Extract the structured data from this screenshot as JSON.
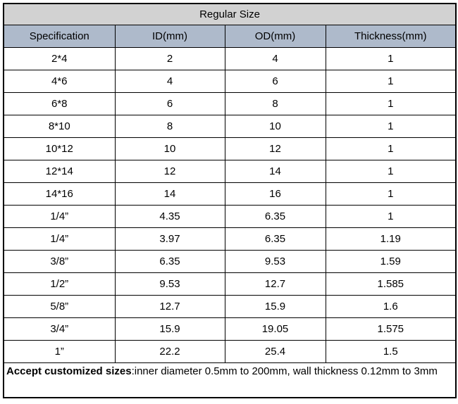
{
  "table": {
    "title": "Regular Size",
    "columns": [
      "Specification",
      "ID(mm)",
      "OD(mm)",
      "Thickness(mm)"
    ],
    "rows": [
      [
        "2*4",
        "2",
        "4",
        "1"
      ],
      [
        "4*6",
        "4",
        "6",
        "1"
      ],
      [
        "6*8",
        "6",
        "8",
        "1"
      ],
      [
        "8*10",
        "8",
        "10",
        "1"
      ],
      [
        "10*12",
        "10",
        "12",
        "1"
      ],
      [
        "12*14",
        "12",
        "14",
        "1"
      ],
      [
        "14*16",
        "14",
        "16",
        "1"
      ],
      [
        "1/4”",
        "4.35",
        "6.35",
        "1"
      ],
      [
        "1/4”",
        "3.97",
        "6.35",
        "1.19"
      ],
      [
        "3/8”",
        "6.35",
        "9.53",
        "1.59"
      ],
      [
        "1/2”",
        "9.53",
        "12.7",
        "1.585"
      ],
      [
        "5/8”",
        "12.7",
        "15.9",
        "1.6"
      ],
      [
        "3/4”",
        "15.9",
        "19.05",
        "1.575"
      ],
      [
        "1”",
        "22.2",
        "25.4",
        "1.5"
      ]
    ],
    "footer": {
      "bold": "Accept customized sizes",
      "rest": ":inner diameter 0.5mm to 200mm, wall thickness 0.12mm to 3mm"
    },
    "column_keys": [
      "specification",
      "id-mm",
      "od-mm",
      "thickness-mm"
    ]
  },
  "colors": {
    "title_bg": "#d2d2d2",
    "header_bg": "#aebacb",
    "border": "#000000",
    "text": "#000000",
    "page_bg": "#ffffff"
  }
}
